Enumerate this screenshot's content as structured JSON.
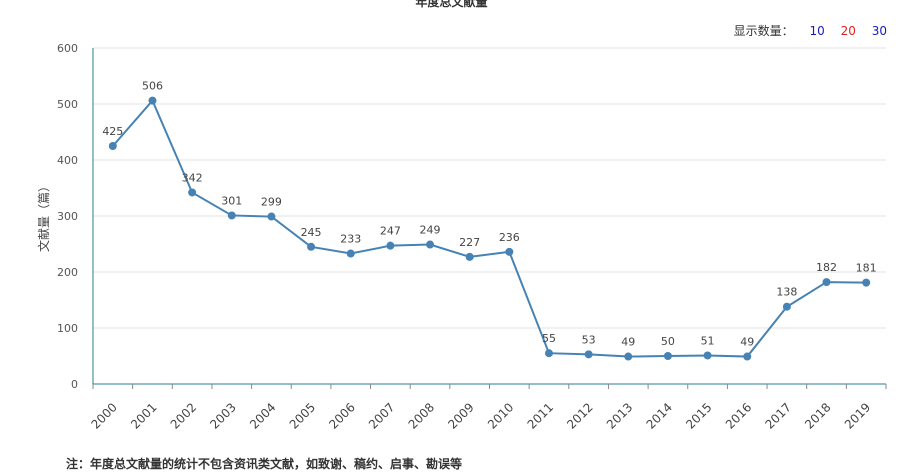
{
  "title": "年度总文献量",
  "display_count": {
    "label": "显示数量：",
    "options": [
      {
        "text": "10",
        "color": "#1a1ab8"
      },
      {
        "text": "20",
        "color": "#e02020"
      },
      {
        "text": "30",
        "color": "#1a1ab8"
      }
    ]
  },
  "footnote": "注：年度总文献量的统计不包含资讯类文献，如致谢、稿约、启事、勘误等",
  "chart_data": {
    "type": "line",
    "title": "年度总文献量",
    "xlabel": "",
    "ylabel": "文献量（篇）",
    "ylim": [
      0,
      600
    ],
    "yticks": [
      0,
      100,
      200,
      300,
      400,
      500,
      600
    ],
    "grid": true,
    "color": "#4682b4",
    "categories": [
      "2000",
      "2001",
      "2002",
      "2003",
      "2004",
      "2005",
      "2006",
      "2007",
      "2008",
      "2009",
      "2010",
      "2011",
      "2012",
      "2013",
      "2014",
      "2015",
      "2016",
      "2017",
      "2018",
      "2019"
    ],
    "values": [
      425,
      506,
      342,
      301,
      299,
      245,
      233,
      247,
      249,
      227,
      236,
      55,
      53,
      49,
      50,
      51,
      49,
      138,
      182,
      181
    ]
  }
}
